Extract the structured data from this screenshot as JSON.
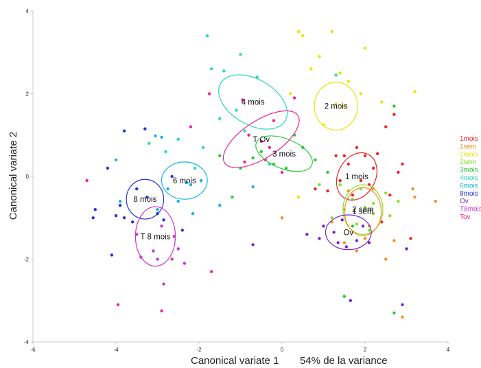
{
  "chart_data": {
    "type": "scatter",
    "xlabel": "Canonical variate 1",
    "ylabel": "Canonical variate 2",
    "variance_note": "54% de la variance",
    "xlim": [
      -6,
      4
    ],
    "ylim": [
      -4,
      4
    ],
    "x_ticks": [
      "-6",
      "-4",
      "-2",
      "0",
      "2",
      "4"
    ],
    "y_ticks": [
      "4",
      "2",
      "0",
      "-2",
      "-4"
    ],
    "grid": false,
    "legend_position": "right",
    "legend": [
      {
        "label": "1mois",
        "color": "#ee2222"
      },
      {
        "label": "1sem",
        "color": "#ff8c1a"
      },
      {
        "label": "2mois",
        "color": "#e6e600"
      },
      {
        "label": "2sem",
        "color": "#88e02a"
      },
      {
        "label": "3mois",
        "color": "#22cc33"
      },
      {
        "label": "4mois",
        "color": "#22ddbb"
      },
      {
        "label": "6mois",
        "color": "#11b4e8"
      },
      {
        "label": "8mois",
        "color": "#2233dd"
      },
      {
        "label": "Ov",
        "color": "#7722cc"
      },
      {
        "label": "T8mois",
        "color": "#cc33cc"
      },
      {
        "label": "Tov",
        "color": "#ee2299"
      }
    ],
    "ellipses": [
      {
        "label": "4 mois",
        "cx": -0.7,
        "cy": 1.8,
        "rx": 0.9,
        "ry": 0.55,
        "angle": 30,
        "color": "#22ddbb"
      },
      {
        "label": "2 mois",
        "cx": 1.3,
        "cy": 1.7,
        "rx": 0.52,
        "ry": 0.58,
        "angle": 0,
        "color": "#e6e600"
      },
      {
        "label": "T Ov",
        "cx": -0.5,
        "cy": 0.9,
        "rx": 1.05,
        "ry": 0.45,
        "angle": -33,
        "color": "#ee2299"
      },
      {
        "label": "3 mois",
        "cx": 0.05,
        "cy": 0.55,
        "rx": 0.72,
        "ry": 0.36,
        "angle": 22,
        "color": "#22cc33"
      },
      {
        "label": "1 mois",
        "cx": 1.8,
        "cy": 0.0,
        "rx": 0.45,
        "ry": 0.6,
        "angle": 28,
        "color": "#ee2222"
      },
      {
        "label": "2 sem",
        "cx": 1.95,
        "cy": -0.8,
        "rx": 0.48,
        "ry": 0.6,
        "angle": 0,
        "color": "#88e02a"
      },
      {
        "label": "1 sem",
        "cx": 1.95,
        "cy": -0.85,
        "rx": 0.44,
        "ry": 0.58,
        "angle": 0,
        "color": "#ff8c1a"
      },
      {
        "label": "Ov",
        "cx": 1.6,
        "cy": -1.35,
        "rx": 0.55,
        "ry": 0.42,
        "angle": 0,
        "color": "#7722cc"
      },
      {
        "label": "6 mois",
        "cx": -2.35,
        "cy": -0.1,
        "rx": 0.55,
        "ry": 0.45,
        "angle": 0,
        "color": "#11b4e8"
      },
      {
        "label": "8 mois",
        "cx": -3.3,
        "cy": -0.55,
        "rx": 0.45,
        "ry": 0.48,
        "angle": 0,
        "color": "#2233dd"
      },
      {
        "label": "T 8 mois",
        "cx": -3.05,
        "cy": -1.45,
        "rx": 0.48,
        "ry": 0.72,
        "angle": 0,
        "color": "#cc33cc"
      }
    ],
    "series": [
      {
        "name": "1mois",
        "color": "#ee2222",
        "points": [
          [
            1.3,
            0.5
          ],
          [
            1.6,
            0.3
          ],
          [
            2.0,
            0.5
          ],
          [
            1.9,
            -0.1
          ],
          [
            2.2,
            0.2
          ],
          [
            1.1,
            -0.35
          ],
          [
            2.8,
            0.1
          ],
          [
            2.6,
            -0.45
          ],
          [
            2.3,
            0.55
          ],
          [
            1.4,
            -0.1
          ],
          [
            2.5,
            1.2
          ],
          [
            3.1,
            -1.5
          ],
          [
            1.7,
            -0.45
          ],
          [
            2.7,
            1.5
          ],
          [
            2.4,
            -1.1
          ],
          [
            1.5,
            0.5
          ],
          [
            0.8,
            -0.3
          ],
          [
            2.1,
            -0.2
          ],
          [
            1.8,
            0.7
          ],
          [
            2.9,
            0.3
          ]
        ]
      },
      {
        "name": "1sem",
        "color": "#ff8c1a",
        "points": [
          [
            3.2,
            -0.5
          ],
          [
            1.5,
            -1.6
          ],
          [
            2.5,
            -2.0
          ],
          [
            3.7,
            -0.6
          ],
          [
            1.2,
            -1.1
          ],
          [
            2.0,
            -1.5
          ],
          [
            2.7,
            -1.55
          ],
          [
            2.2,
            -0.3
          ],
          [
            0.0,
            -1.0
          ],
          [
            1.6,
            -0.35
          ],
          [
            2.9,
            -3.4
          ],
          [
            2.1,
            -1.2
          ],
          [
            1.8,
            -1.8
          ],
          [
            3.15,
            -0.3
          ]
        ]
      },
      {
        "name": "2mois",
        "color": "#e6e600",
        "points": [
          [
            0.4,
            3.5
          ],
          [
            1.2,
            3.5
          ],
          [
            2.0,
            3.1
          ],
          [
            1.4,
            2.5
          ],
          [
            0.7,
            2.6
          ],
          [
            1.6,
            2.3
          ],
          [
            0.9,
            2.9
          ],
          [
            3.2,
            2.05
          ],
          [
            0.5,
            3.4
          ],
          [
            1.3,
            1.75
          ],
          [
            1.0,
            1.25
          ],
          [
            1.5,
            1.7
          ],
          [
            1.9,
            2.0
          ],
          [
            0.2,
            2.0
          ],
          [
            2.4,
            1.8
          ],
          [
            0.4,
            -0.5
          ]
        ]
      },
      {
        "name": "2sem",
        "color": "#88e02a",
        "points": [
          [
            1.7,
            -0.55
          ],
          [
            2.2,
            -0.65
          ],
          [
            1.8,
            -1.15
          ],
          [
            2.2,
            -0.9
          ],
          [
            2.5,
            -0.4
          ],
          [
            1.4,
            -0.2
          ],
          [
            2.0,
            -0.75
          ],
          [
            2.6,
            -0.95
          ],
          [
            0.9,
            -0.2
          ],
          [
            1.2,
            -1.0
          ],
          [
            2.1,
            -1.3
          ],
          [
            1.5,
            -0.8
          ],
          [
            2.8,
            -0.6
          ],
          [
            1.9,
            -0.3
          ]
        ]
      },
      {
        "name": "3mois",
        "color": "#22cc33",
        "points": [
          [
            -0.5,
            0.6
          ],
          [
            0.3,
            1.0
          ],
          [
            -1.0,
            0.2
          ],
          [
            0.8,
            0.4
          ],
          [
            -0.2,
            0.3
          ],
          [
            -0.7,
            0.45
          ],
          [
            0.5,
            0.7
          ],
          [
            1.1,
            0.1
          ],
          [
            -1.2,
            -0.5
          ],
          [
            2.7,
            1.7
          ],
          [
            1.5,
            -2.9
          ],
          [
            2.7,
            -3.3
          ],
          [
            1.7,
            -1.2
          ],
          [
            -1.5,
            0.5
          ],
          [
            0.1,
            0.2
          ]
        ]
      },
      {
        "name": "4mois",
        "color": "#22ddbb",
        "points": [
          [
            -1.8,
            3.4
          ],
          [
            -1.4,
            2.55
          ],
          [
            -1.0,
            2.95
          ],
          [
            -0.6,
            2.4
          ],
          [
            -1.1,
            1.6
          ],
          [
            -1.7,
            2.6
          ],
          [
            1.3,
            2.45
          ],
          [
            -0.3,
            0.3
          ],
          [
            -0.9,
            1.1
          ],
          [
            -1.9,
            0.7
          ],
          [
            -1.5,
            1.4
          ],
          [
            -2.5,
            0.9
          ],
          [
            -2.8,
            0.6
          ],
          [
            -3.2,
            0.8
          ],
          [
            -2.1,
            0.2
          ]
        ]
      },
      {
        "name": "6mois",
        "color": "#11b4e8",
        "points": [
          [
            -3.3,
            1.15
          ],
          [
            -2.9,
            0.95
          ],
          [
            -3.05,
            0.98
          ],
          [
            -2.15,
            -0.9
          ],
          [
            -2.5,
            -0.6
          ],
          [
            -1.95,
            -0.1
          ],
          [
            -2.2,
            -0.2
          ],
          [
            -3.0,
            -0.8
          ],
          [
            -3.9,
            -0.6
          ],
          [
            -4.0,
            0.4
          ],
          [
            -2.75,
            -0.3
          ],
          [
            -2.3,
            -0.15
          ],
          [
            -1.5,
            -0.7
          ],
          [
            -0.7,
            -0.25
          ]
        ]
      },
      {
        "name": "8mois",
        "color": "#2233dd",
        "points": [
          [
            -3.25,
            -0.5
          ],
          [
            -3.6,
            -1.1
          ],
          [
            -3.0,
            -0.9
          ],
          [
            -3.8,
            -1.0
          ],
          [
            -4.2,
            0.2
          ],
          [
            -4.5,
            -0.8
          ],
          [
            -4.55,
            -1.0
          ],
          [
            -2.4,
            -1.3
          ],
          [
            -3.8,
            1.1
          ],
          [
            -2.65,
            0.0
          ],
          [
            -2.85,
            -1.05
          ],
          [
            -4.1,
            -1.9
          ],
          [
            -3.3,
            1.15
          ],
          [
            -4.0,
            -0.95
          ],
          [
            -3.5,
            -0.3
          ],
          [
            -3.9,
            -0.7
          ]
        ]
      },
      {
        "name": "Ov",
        "color": "#7722cc",
        "points": [
          [
            1.25,
            -1.35
          ],
          [
            1.55,
            -1.7
          ],
          [
            1.8,
            -1.55
          ],
          [
            1.35,
            -1.6
          ],
          [
            1.95,
            -1.2
          ],
          [
            2.1,
            -1.6
          ],
          [
            1.0,
            -1.2
          ],
          [
            0.6,
            -1.4
          ],
          [
            -0.7,
            -1.65
          ],
          [
            3.0,
            -1.75
          ],
          [
            1.65,
            -3.0
          ],
          [
            2.9,
            -3.1
          ],
          [
            0.9,
            -1.5
          ],
          [
            1.45,
            -1.05
          ]
        ]
      },
      {
        "name": "T8mois",
        "color": "#cc33cc",
        "points": [
          [
            -3.4,
            -1.95
          ],
          [
            -3.0,
            -2.0
          ],
          [
            -2.65,
            -2.0
          ],
          [
            -2.85,
            -2.6
          ],
          [
            -2.5,
            -1.75
          ],
          [
            -3.5,
            -1.4
          ],
          [
            -2.9,
            -1.2
          ],
          [
            -2.35,
            -2.1
          ],
          [
            -3.1,
            -1.8
          ],
          [
            -2.6,
            -1.45
          ]
        ]
      },
      {
        "name": "Tov",
        "color": "#ee2299",
        "points": [
          [
            -0.95,
            1.85
          ],
          [
            -0.5,
            0.85
          ],
          [
            -0.8,
            1.0
          ],
          [
            -0.2,
            1.35
          ],
          [
            0.3,
            1.9
          ],
          [
            -0.3,
            0.7
          ],
          [
            0.0,
            0.1
          ],
          [
            -4.7,
            -0.1
          ],
          [
            -3.95,
            -3.1
          ],
          [
            -1.7,
            -2.3
          ],
          [
            -2.9,
            -3.25
          ],
          [
            -1.75,
            2.0
          ],
          [
            -0.4,
            0.4
          ],
          [
            -0.9,
            0.35
          ],
          [
            -2.2,
            1.2
          ]
        ]
      }
    ]
  }
}
